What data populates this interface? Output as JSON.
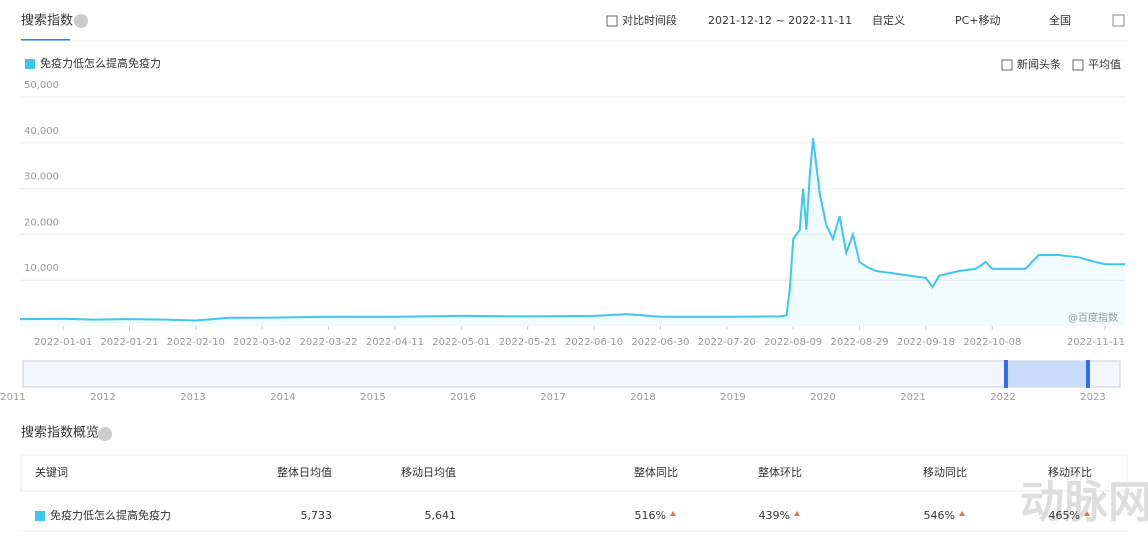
{
  "ui": {
    "tab": "搜索指数",
    "compare": "对比时间段",
    "range": "2021-12-12 ~ 2022-11-11",
    "mode": "自定义",
    "device": "PC+移动",
    "region": "全国",
    "news": "新闻头条",
    "avg": "平均值",
    "watermark": "@百度指数",
    "years": [
      "2011",
      "2012",
      "2013",
      "2014",
      "2015",
      "2016",
      "2017",
      "2018",
      "2019",
      "2020",
      "2021",
      "2022",
      "2023"
    ],
    "overview": "搜索指数概览",
    "table": {
      "header": [
        "关键词",
        "整体日均值",
        "移动日均值",
        "整体同比",
        "整体环比",
        "移动同比",
        "移动环比"
      ],
      "rows": [
        [
          "免疫力低怎么提高免疫力",
          "5,733",
          "5,641",
          "516%",
          "439%",
          "546%",
          "465%"
        ]
      ]
    },
    "logo": "动脉网"
  },
  "chart_data": {
    "type": "line",
    "xlim": [
      "2021-12-19",
      "2022-11-17"
    ],
    "ylim": [
      0,
      50000
    ],
    "yticks": [
      {
        "value": 10000,
        "label": "10,000"
      },
      {
        "value": 20000,
        "label": "20,000"
      },
      {
        "value": 30000,
        "label": "30,000"
      },
      {
        "value": 40000,
        "label": "40,000"
      },
      {
        "value": 50000,
        "label": "50,000"
      }
    ],
    "xticks": [
      "2022-01-01",
      "2022-01-21",
      "2022-02-10",
      "2022-03-02",
      "2022-03-22",
      "2022-04-11",
      "2022-05-01",
      "2022-05-21",
      "2022-06-10",
      "2022-06-30",
      "2022-07-20",
      "2022-08-09",
      "2022-08-29",
      "2022-09-18",
      "2022-10-08",
      "2022-11-11"
    ],
    "grid": true,
    "x": [
      "2021-12-19",
      "2022-01-01",
      "2022-01-10",
      "2022-01-21",
      "2022-02-01",
      "2022-02-10",
      "2022-02-20",
      "2022-03-02",
      "2022-03-22",
      "2022-04-11",
      "2022-05-01",
      "2022-05-21",
      "2022-06-10",
      "2022-06-20",
      "2022-06-30",
      "2022-07-20",
      "2022-08-05",
      "2022-08-07",
      "2022-08-08",
      "2022-08-09",
      "2022-08-11",
      "2022-08-12",
      "2022-08-13",
      "2022-08-14",
      "2022-08-15",
      "2022-08-17",
      "2022-08-19",
      "2022-08-21",
      "2022-08-23",
      "2022-08-25",
      "2022-08-27",
      "2022-08-29",
      "2022-08-31",
      "2022-09-03",
      "2022-09-08",
      "2022-09-13",
      "2022-09-18",
      "2022-09-20",
      "2022-09-22",
      "2022-09-28",
      "2022-10-03",
      "2022-10-06",
      "2022-10-08",
      "2022-10-18",
      "2022-10-22",
      "2022-10-28",
      "2022-11-03",
      "2022-11-08",
      "2022-11-11",
      "2022-11-17"
    ],
    "series": [
      {
        "name": "免疫力低怎么提高免疫力",
        "color": "#3ec6f0",
        "values": [
          1500,
          1600,
          1400,
          1500,
          1400,
          1200,
          1800,
          1800,
          2000,
          2000,
          2200,
          2100,
          2200,
          2600,
          2000,
          2000,
          2100,
          2300,
          8000,
          19000,
          21000,
          30000,
          21000,
          33000,
          41000,
          29000,
          22000,
          19000,
          24000,
          16000,
          20000,
          14000,
          13000,
          12000,
          11500,
          11000,
          10500,
          8500,
          11000,
          12000,
          12500,
          14000,
          12500,
          12500,
          15500,
          15500,
          15000,
          14000,
          13500,
          13500
        ]
      }
    ]
  }
}
